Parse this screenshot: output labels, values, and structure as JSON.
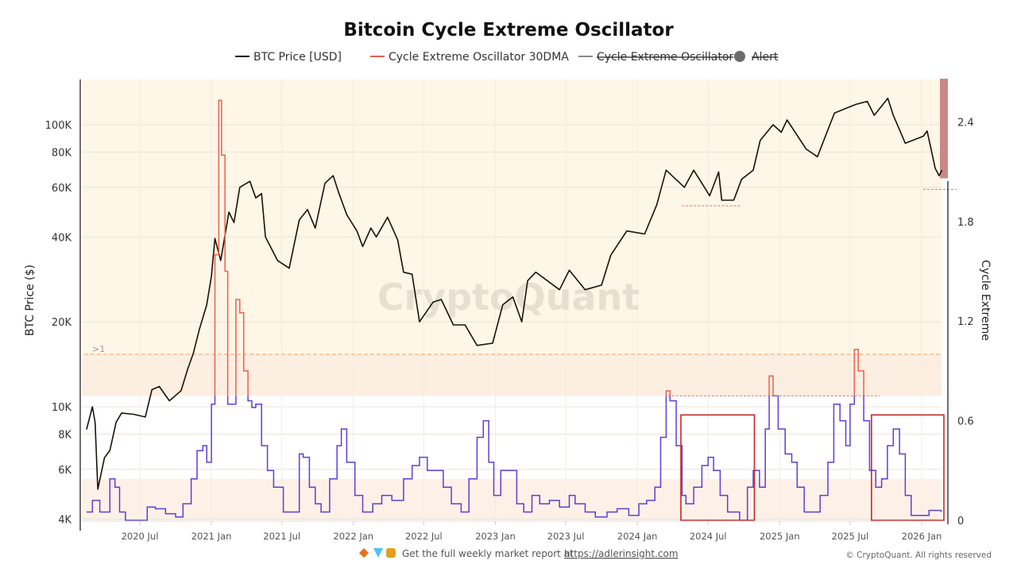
{
  "chart_data": {
    "type": "line",
    "title": "Bitcoin Cycle Extreme Oscillator",
    "legend": [
      {
        "label": "BTC Price [USD]",
        "color": "#1a1208",
        "hidden": false
      },
      {
        "label": "Cycle Extreme Oscillator 30DMA",
        "color": "#e8604c",
        "hidden": false
      },
      {
        "label": "Cycle Extreme Oscillator",
        "color": "#888888",
        "hidden": true
      },
      {
        "label": "Alert",
        "color": "#6b6b70",
        "hidden": true,
        "marker": "circle"
      }
    ],
    "legend_placement": "top-center",
    "left_axis": {
      "label": "BTC Price ($)",
      "scale": "log",
      "range": [
        4000,
        135000
      ],
      "ticks": [
        {
          "v": 4000,
          "t": "4K"
        },
        {
          "v": 6000,
          "t": "6K"
        },
        {
          "v": 8000,
          "t": "8K"
        },
        {
          "v": 10000,
          "t": "10K"
        },
        {
          "v": 20000,
          "t": "20K"
        },
        {
          "v": 40000,
          "t": "40K"
        },
        {
          "v": 60000,
          "t": "60K"
        },
        {
          "v": 80000,
          "t": "80K"
        },
        {
          "v": 100000,
          "t": "100K"
        }
      ]
    },
    "right_axis": {
      "label": "Cycle Extreme",
      "scale": "linear",
      "range": [
        0,
        2.66
      ],
      "ticks": [
        {
          "v": 0,
          "t": "0"
        },
        {
          "v": 0.6,
          "t": "0.6"
        },
        {
          "v": 1.2,
          "t": "1.2"
        },
        {
          "v": 1.8,
          "t": "1.8"
        },
        {
          "v": 2.4,
          "t": "2.4"
        }
      ]
    },
    "x_axis": {
      "range": [
        "2020-02-15",
        "2026-02-22"
      ],
      "ticks": [
        {
          "d": "2020-07-01",
          "t": "2020 Jul"
        },
        {
          "d": "2021-01-01",
          "t": "2021 Jan"
        },
        {
          "d": "2021-07-01",
          "t": "2021 Jul"
        },
        {
          "d": "2022-01-01",
          "t": "2022 Jan"
        },
        {
          "d": "2022-07-01",
          "t": "2022 Jul"
        },
        {
          "d": "2023-01-01",
          "t": "2023 Jan"
        },
        {
          "d": "2023-07-01",
          "t": "2023 Jul"
        },
        {
          "d": "2024-01-01",
          "t": "2024 Jan"
        },
        {
          "d": "2024-07-01",
          "t": "2024 Jul"
        },
        {
          "d": "2025-01-01",
          "t": "2025 Jan"
        },
        {
          "d": "2025-07-01",
          "t": "2025 Jul"
        },
        {
          "d": "2026-01-01",
          "t": "2026 Jan"
        }
      ]
    },
    "grid": true,
    "threshold": {
      "value": 0.75,
      "above_color": "#e8604c",
      "below_color": "#5b3fd6"
    },
    "bands": [
      {
        "from": 1.0,
        "to": 2.66,
        "color": "#fef6e6"
      },
      {
        "from": 0.75,
        "to": 1.0,
        "color": "#fdeee2"
      },
      {
        "from": 0,
        "to": 0.25,
        "color": "#fdf1e7"
      }
    ],
    "gt1_line": {
      "value": 1.0,
      "label": ">1",
      "color": "#f0a060"
    },
    "alert_zone": {
      "from": 2.06,
      "to": 2.66,
      "color": "#c98888"
    },
    "reference_lines": [
      {
        "axis": "right",
        "value": 0.75,
        "from": "2024-03-20",
        "to": "2025-09-15",
        "color": "#e07070"
      },
      {
        "axis": "left",
        "value": 51600,
        "from": "2024-04-25",
        "to": "2024-09-25",
        "color": "#e07070"
      },
      {
        "axis": "left",
        "value": 59000,
        "from": "2026-01-05",
        "to": "2026-04-01",
        "color": "#e07070"
      }
    ],
    "highlight_boxes": [
      {
        "from": "2024-04-22",
        "to": "2024-10-28",
        "y_from": 0,
        "y_to": 0.635,
        "color": "#c62828"
      },
      {
        "from": "2025-08-25",
        "to": "2026-02-28",
        "y_from": 0,
        "y_to": 0.635,
        "color": "#c62828"
      }
    ],
    "series": [
      {
        "name": "BTC Price [USD]",
        "axis": "left",
        "points": [
          [
            "2020-02-15",
            8300
          ],
          [
            "2020-03-01",
            10000
          ],
          [
            "2020-03-08",
            8800
          ],
          [
            "2020-03-15",
            5100
          ],
          [
            "2020-04-01",
            6600
          ],
          [
            "2020-04-15",
            7000
          ],
          [
            "2020-05-01",
            8800
          ],
          [
            "2020-05-15",
            9500
          ],
          [
            "2020-06-15",
            9400
          ],
          [
            "2020-07-15",
            9200
          ],
          [
            "2020-08-01",
            11500
          ],
          [
            "2020-08-20",
            11800
          ],
          [
            "2020-09-15",
            10500
          ],
          [
            "2020-10-15",
            11400
          ],
          [
            "2020-11-01",
            13600
          ],
          [
            "2020-11-15",
            15400
          ],
          [
            "2020-12-01",
            18800
          ],
          [
            "2020-12-20",
            23000
          ],
          [
            "2021-01-01",
            29000
          ],
          [
            "2021-01-10",
            39500
          ],
          [
            "2021-01-25",
            33000
          ],
          [
            "2021-02-15",
            49000
          ],
          [
            "2021-02-28",
            45000
          ],
          [
            "2021-03-15",
            60000
          ],
          [
            "2021-04-10",
            63000
          ],
          [
            "2021-04-25",
            55000
          ],
          [
            "2021-05-10",
            57000
          ],
          [
            "2021-05-20",
            40000
          ],
          [
            "2021-06-20",
            33000
          ],
          [
            "2021-07-20",
            31000
          ],
          [
            "2021-08-15",
            46000
          ],
          [
            "2021-09-05",
            50000
          ],
          [
            "2021-09-25",
            43000
          ],
          [
            "2021-10-20",
            62000
          ],
          [
            "2021-11-10",
            66000
          ],
          [
            "2021-11-25",
            57000
          ],
          [
            "2021-12-15",
            48000
          ],
          [
            "2022-01-10",
            42000
          ],
          [
            "2022-01-25",
            37000
          ],
          [
            "2022-02-15",
            43000
          ],
          [
            "2022-03-01",
            40000
          ],
          [
            "2022-03-30",
            47000
          ],
          [
            "2022-04-25",
            39000
          ],
          [
            "2022-05-10",
            30000
          ],
          [
            "2022-06-01",
            29500
          ],
          [
            "2022-06-20",
            20000
          ],
          [
            "2022-07-25",
            23500
          ],
          [
            "2022-08-15",
            24000
          ],
          [
            "2022-09-15",
            19500
          ],
          [
            "2022-10-15",
            19500
          ],
          [
            "2022-11-15",
            16500
          ],
          [
            "2022-12-25",
            16800
          ],
          [
            "2023-01-20",
            23000
          ],
          [
            "2023-02-15",
            24500
          ],
          [
            "2023-03-10",
            20000
          ],
          [
            "2023-03-25",
            28000
          ],
          [
            "2023-04-15",
            30000
          ],
          [
            "2023-06-15",
            26000
          ],
          [
            "2023-07-10",
            30500
          ],
          [
            "2023-08-20",
            26000
          ],
          [
            "2023-10-01",
            27000
          ],
          [
            "2023-10-25",
            34500
          ],
          [
            "2023-12-05",
            42000
          ],
          [
            "2024-01-20",
            41000
          ],
          [
            "2024-02-20",
            52000
          ],
          [
            "2024-03-15",
            69000
          ],
          [
            "2024-05-01",
            60000
          ],
          [
            "2024-05-25",
            69000
          ],
          [
            "2024-07-05",
            56000
          ],
          [
            "2024-07-28",
            68000
          ],
          [
            "2024-08-05",
            54000
          ],
          [
            "2024-09-05",
            54000
          ],
          [
            "2024-09-25",
            64000
          ],
          [
            "2024-10-25",
            69000
          ],
          [
            "2024-11-12",
            88000
          ],
          [
            "2024-12-15",
            100000
          ],
          [
            "2025-01-05",
            94000
          ],
          [
            "2025-01-20",
            104000
          ],
          [
            "2025-03-10",
            82000
          ],
          [
            "2025-04-08",
            77000
          ],
          [
            "2025-05-10",
            100000
          ],
          [
            "2025-05-22",
            110000
          ],
          [
            "2025-07-15",
            118000
          ],
          [
            "2025-08-14",
            121000
          ],
          [
            "2025-09-01",
            108000
          ],
          [
            "2025-10-06",
            124000
          ],
          [
            "2025-10-20",
            108000
          ],
          [
            "2025-11-20",
            86000
          ],
          [
            "2026-01-05",
            91000
          ],
          [
            "2026-01-15",
            95000
          ],
          [
            "2026-02-05",
            70000
          ],
          [
            "2026-02-15",
            66000
          ],
          [
            "2026-02-22",
            69000
          ]
        ]
      },
      {
        "name": "Cycle Extreme Oscillator 30DMA",
        "axis": "right",
        "points": [
          [
            "2020-02-15",
            0.05
          ],
          [
            "2020-03-01",
            0.12
          ],
          [
            "2020-03-20",
            0.05
          ],
          [
            "2020-04-15",
            0.25
          ],
          [
            "2020-04-28",
            0.2
          ],
          [
            "2020-05-10",
            0.05
          ],
          [
            "2020-05-25",
            0.0
          ],
          [
            "2020-07-01",
            0.0
          ],
          [
            "2020-07-20",
            0.08
          ],
          [
            "2020-08-10",
            0.07
          ],
          [
            "2020-09-05",
            0.04
          ],
          [
            "2020-10-01",
            0.02
          ],
          [
            "2020-10-20",
            0.1
          ],
          [
            "2020-11-10",
            0.25
          ],
          [
            "2020-11-25",
            0.42
          ],
          [
            "2020-12-10",
            0.45
          ],
          [
            "2020-12-20",
            0.35
          ],
          [
            "2021-01-01",
            0.7
          ],
          [
            "2021-01-10",
            1.6
          ],
          [
            "2021-01-20",
            2.53
          ],
          [
            "2021-01-27",
            2.2
          ],
          [
            "2021-02-05",
            1.5
          ],
          [
            "2021-02-12",
            0.7
          ],
          [
            "2021-02-22",
            0.7
          ],
          [
            "2021-03-05",
            1.33
          ],
          [
            "2021-03-15",
            1.25
          ],
          [
            "2021-03-25",
            0.9
          ],
          [
            "2021-04-05",
            0.72
          ],
          [
            "2021-04-15",
            0.68
          ],
          [
            "2021-04-25",
            0.7
          ],
          [
            "2021-05-10",
            0.45
          ],
          [
            "2021-05-25",
            0.3
          ],
          [
            "2021-06-10",
            0.2
          ],
          [
            "2021-07-05",
            0.05
          ],
          [
            "2021-08-15",
            0.4
          ],
          [
            "2021-08-25",
            0.38
          ],
          [
            "2021-09-10",
            0.2
          ],
          [
            "2021-09-25",
            0.1
          ],
          [
            "2021-10-10",
            0.05
          ],
          [
            "2021-11-01",
            0.25
          ],
          [
            "2021-11-20",
            0.45
          ],
          [
            "2021-12-01",
            0.55
          ],
          [
            "2021-12-15",
            0.35
          ],
          [
            "2022-01-05",
            0.15
          ],
          [
            "2022-01-25",
            0.05
          ],
          [
            "2022-02-20",
            0.1
          ],
          [
            "2022-03-15",
            0.15
          ],
          [
            "2022-04-10",
            0.12
          ],
          [
            "2022-05-10",
            0.25
          ],
          [
            "2022-06-01",
            0.33
          ],
          [
            "2022-06-20",
            0.38
          ],
          [
            "2022-07-10",
            0.3
          ],
          [
            "2022-07-30",
            0.3
          ],
          [
            "2022-08-20",
            0.2
          ],
          [
            "2022-09-10",
            0.1
          ],
          [
            "2022-10-05",
            0.05
          ],
          [
            "2022-10-25",
            0.25
          ],
          [
            "2022-11-15",
            0.5
          ],
          [
            "2022-12-01",
            0.6
          ],
          [
            "2022-12-15",
            0.35
          ],
          [
            "2022-12-28",
            0.15
          ],
          [
            "2023-01-15",
            0.3
          ],
          [
            "2023-02-05",
            0.3
          ],
          [
            "2023-02-25",
            0.1
          ],
          [
            "2023-03-15",
            0.05
          ],
          [
            "2023-04-05",
            0.15
          ],
          [
            "2023-04-25",
            0.1
          ],
          [
            "2023-05-20",
            0.12
          ],
          [
            "2023-06-15",
            0.08
          ],
          [
            "2023-07-10",
            0.15
          ],
          [
            "2023-07-25",
            0.1
          ],
          [
            "2023-08-20",
            0.05
          ],
          [
            "2023-09-15",
            0.02
          ],
          [
            "2023-10-15",
            0.05
          ],
          [
            "2023-11-10",
            0.07
          ],
          [
            "2023-12-10",
            0.03
          ],
          [
            "2024-01-05",
            0.1
          ],
          [
            "2024-01-25",
            0.12
          ],
          [
            "2024-02-15",
            0.2
          ],
          [
            "2024-03-01",
            0.5
          ],
          [
            "2024-03-15",
            0.78
          ],
          [
            "2024-03-25",
            0.72
          ],
          [
            "2024-04-10",
            0.45
          ],
          [
            "2024-04-25",
            0.15
          ],
          [
            "2024-05-05",
            0.1
          ],
          [
            "2024-05-25",
            0.2
          ],
          [
            "2024-06-15",
            0.33
          ],
          [
            "2024-07-01",
            0.38
          ],
          [
            "2024-07-15",
            0.3
          ],
          [
            "2024-08-01",
            0.15
          ],
          [
            "2024-08-20",
            0.05
          ],
          [
            "2024-09-20",
            0.0
          ],
          [
            "2024-10-10",
            0.2
          ],
          [
            "2024-10-25",
            0.3
          ],
          [
            "2024-11-10",
            0.2
          ],
          [
            "2024-11-25",
            0.55
          ],
          [
            "2024-12-05",
            0.87
          ],
          [
            "2024-12-15",
            0.75
          ],
          [
            "2024-12-28",
            0.55
          ],
          [
            "2025-01-15",
            0.4
          ],
          [
            "2025-02-01",
            0.35
          ],
          [
            "2025-02-15",
            0.2
          ],
          [
            "2025-03-05",
            0.05
          ],
          [
            "2025-03-25",
            0.05
          ],
          [
            "2025-04-15",
            0.15
          ],
          [
            "2025-05-05",
            0.35
          ],
          [
            "2025-05-20",
            0.7
          ],
          [
            "2025-06-05",
            0.6
          ],
          [
            "2025-06-20",
            0.45
          ],
          [
            "2025-07-01",
            0.7
          ],
          [
            "2025-07-12",
            1.03
          ],
          [
            "2025-07-22",
            0.9
          ],
          [
            "2025-08-05",
            0.6
          ],
          [
            "2025-08-20",
            0.3
          ],
          [
            "2025-09-05",
            0.2
          ],
          [
            "2025-09-20",
            0.25
          ],
          [
            "2025-10-05",
            0.45
          ],
          [
            "2025-10-20",
            0.55
          ],
          [
            "2025-11-05",
            0.4
          ],
          [
            "2025-11-20",
            0.15
          ],
          [
            "2025-12-05",
            0.03
          ],
          [
            "2025-12-25",
            0.03
          ],
          [
            "2026-01-20",
            0.06
          ],
          [
            "2026-02-20",
            0.05
          ]
        ]
      }
    ]
  },
  "watermark": "CryptoQuant",
  "footer": {
    "promo_text": "Get the full weekly market report at",
    "promo_link": "https://adlerinsight.com",
    "copyright": "© CryptoQuant. All rights reserved"
  }
}
